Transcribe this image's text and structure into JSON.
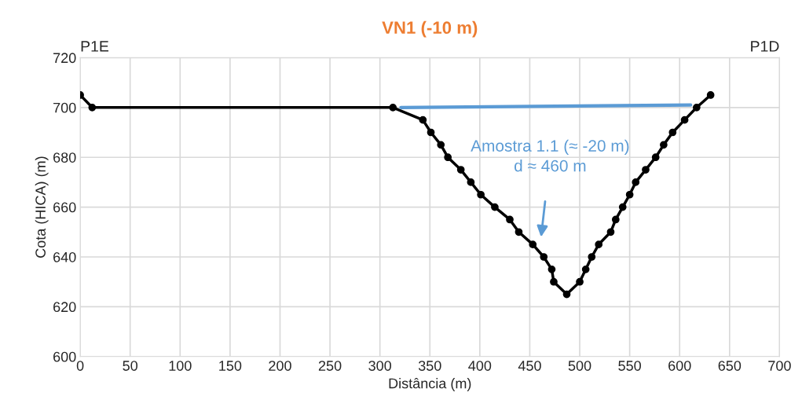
{
  "chart_data": {
    "type": "line",
    "title": "VN1 (-10 m)",
    "xlabel": "Distância (m)",
    "ylabel": "Cota (HICA) (m)",
    "xlim": [
      0,
      700
    ],
    "xticks": [
      0,
      50,
      100,
      150,
      200,
      250,
      300,
      350,
      400,
      450,
      500,
      550,
      600,
      650,
      700
    ],
    "ylim": [
      600,
      720
    ],
    "yticks": [
      600,
      620,
      640,
      660,
      680,
      700,
      720
    ],
    "grid": true,
    "legend": false,
    "series": [
      {
        "color": "#000000",
        "marker": "circle",
        "x": [
          0,
          12,
          313,
          343,
          351,
          361,
          368,
          381,
          391,
          401,
          415,
          430,
          439,
          453,
          464,
          472,
          474,
          487,
          500,
          506,
          512,
          519,
          531,
          536,
          543,
          550,
          556,
          566,
          576,
          584,
          593,
          605,
          617,
          631
        ],
        "values": [
          705,
          700,
          700,
          695,
          690,
          685,
          680,
          675,
          670,
          665,
          660,
          655,
          650,
          645,
          640,
          635,
          630,
          625,
          630,
          635,
          640,
          645,
          650,
          655,
          660,
          665,
          670,
          675,
          680,
          685,
          690,
          695,
          700,
          705
        ]
      },
      {
        "color": "#5b9bd5",
        "marker": "none",
        "x": [
          321,
          611
        ],
        "values": [
          700,
          701
        ]
      }
    ],
    "annotations": [
      "P1E",
      "P1D",
      "Amostra 1.1 (≈ -20 m)\nd ≈ 460 m"
    ]
  }
}
